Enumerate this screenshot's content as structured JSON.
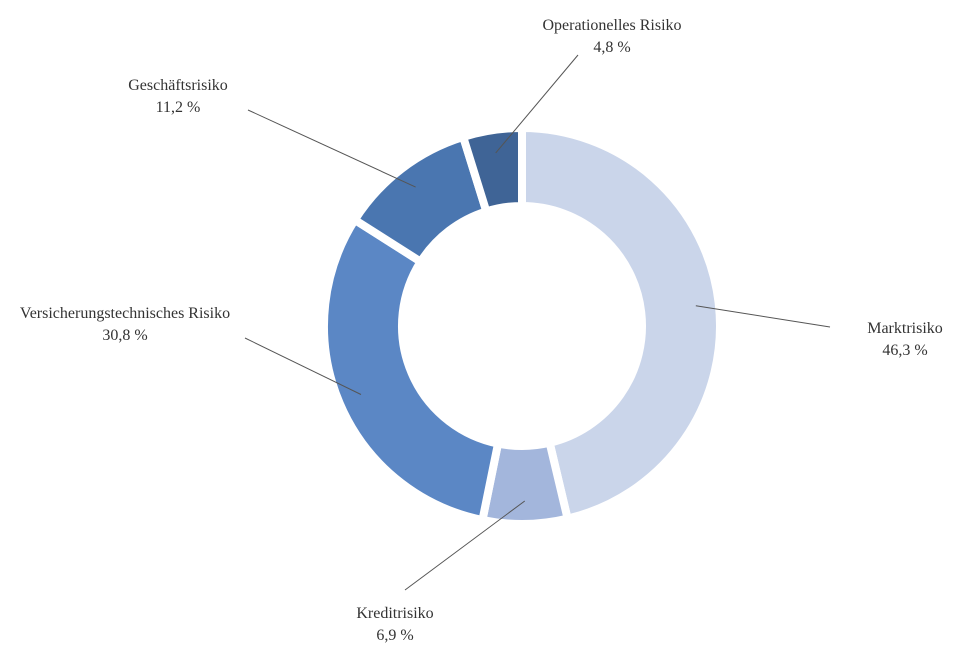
{
  "chart_data": {
    "type": "donut",
    "categories": [
      "Marktrisiko",
      "Kreditrisiko",
      "Versicherungstechnisches Risiko",
      "Geschäftsrisiko",
      "Operationelles Risiko"
    ],
    "values": [
      46.3,
      6.9,
      30.8,
      11.2,
      4.8
    ],
    "value_labels": [
      "46,3 %",
      "6,9 %",
      "30,8 %",
      "11,2 %",
      "4,8 %"
    ],
    "colors": [
      "#cad5ea",
      "#a3b6dc",
      "#5b87c5",
      "#4a76b0",
      "#3f6496"
    ]
  }
}
